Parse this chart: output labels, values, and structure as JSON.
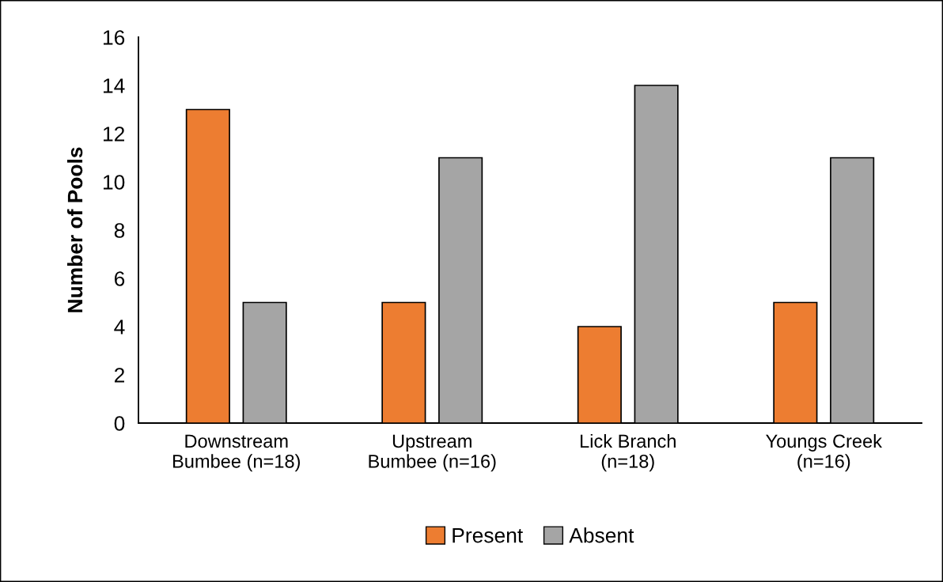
{
  "chart_data": {
    "type": "bar",
    "ylabel": "Number of Pools",
    "categories": [
      "Downstream\nBumbee (n=18)",
      "Upstream\nBumbee (n=16)",
      "Lick Branch\n(n=18)",
      "Youngs Creek\n(n=16)"
    ],
    "series": [
      {
        "name": "Present",
        "color": "#ed7d31",
        "values": [
          13,
          5,
          4,
          5
        ]
      },
      {
        "name": "Absent",
        "color": "#a5a5a5",
        "values": [
          5,
          11,
          14,
          11
        ]
      }
    ],
    "ylim": [
      0,
      16
    ],
    "yticks": [
      0,
      2,
      4,
      6,
      8,
      10,
      12,
      14,
      16
    ],
    "grid": false,
    "legend": "bottom"
  }
}
